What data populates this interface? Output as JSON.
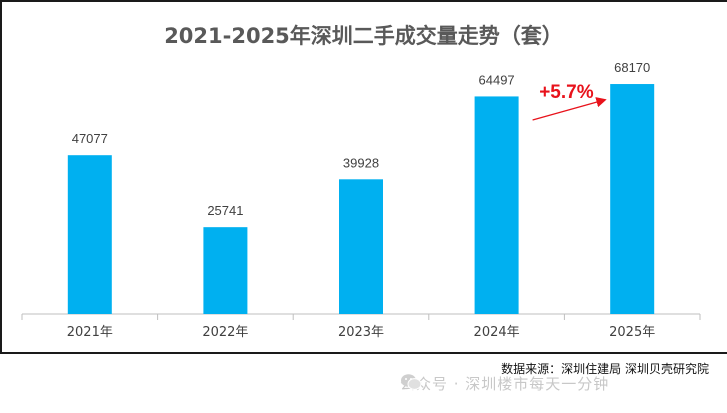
{
  "chart_data": {
    "type": "bar",
    "title": "2021-2025年深圳二手成交量走势（套）",
    "categories": [
      "2021年",
      "2022年",
      "2023年",
      "2024年",
      "2025年"
    ],
    "values": [
      47077,
      25741,
      39928,
      64497,
      68170
    ],
    "ylim": [
      0,
      75000
    ],
    "xlabel": "",
    "ylabel": "",
    "grid": false,
    "colors": {
      "bar": "#00b0f0",
      "annotation": "#e8121b",
      "axis": "#bfbfbf",
      "label": "#404040"
    },
    "annotation": {
      "text": "+5.7%",
      "from": "2024年",
      "to": "2025年"
    }
  },
  "footer": {
    "source": "数据来源：深圳住建局  深圳贝壳研究院",
    "watermark": "公众号 · 深圳楼市每天一分钟",
    "watermark_icon": "wechat-icon"
  }
}
